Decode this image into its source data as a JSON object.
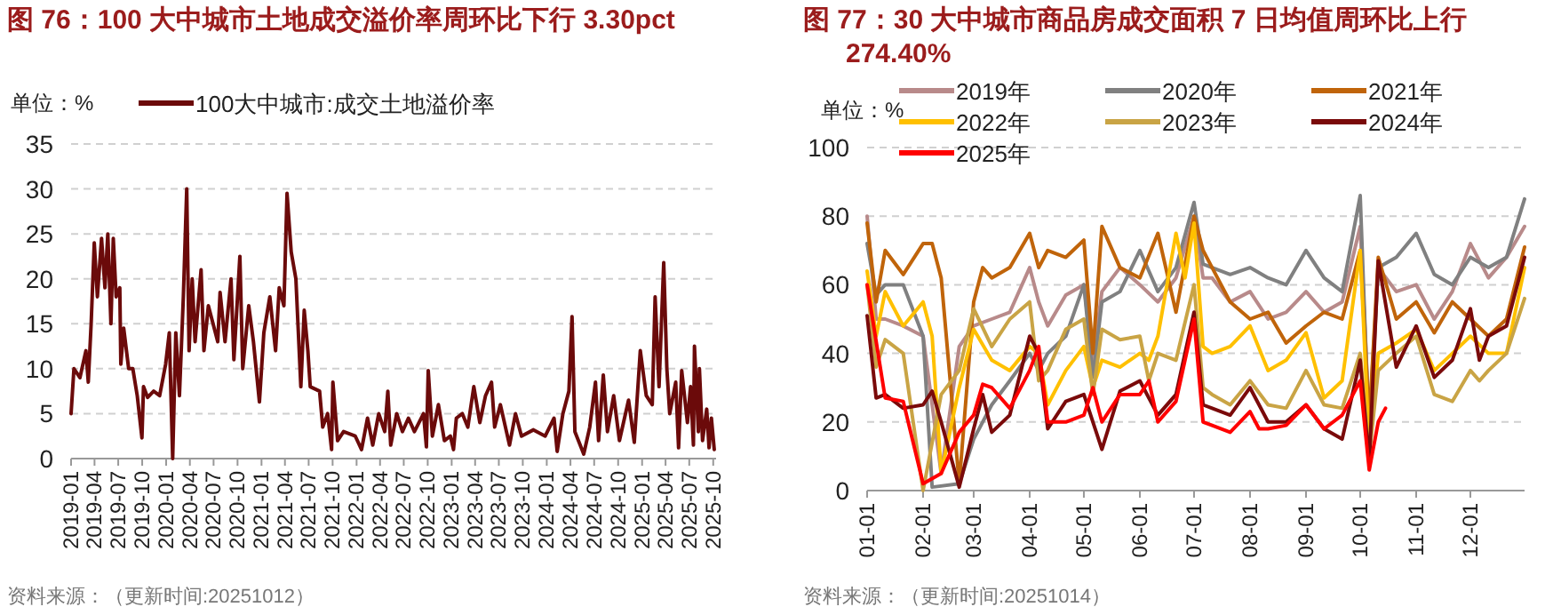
{
  "chart_data": [
    {
      "type": "line",
      "title": "图 76：100 大中城市土地成交溢价率周环比下行 3.30pct",
      "ylabel": "单位：%",
      "annotations": [
        "资料来源：（更新时间:20251012）"
      ],
      "legend": "top",
      "grid": "y",
      "xlim": [
        "2019-01-01",
        "2025-10-12"
      ],
      "ylim": [
        0,
        35
      ],
      "yticks": [
        0,
        5,
        10,
        15,
        20,
        25,
        30,
        35
      ],
      "xticks": [
        "2019-01",
        "2019-04",
        "2019-07",
        "2019-10",
        "2020-01",
        "2020-04",
        "2020-07",
        "2020-10",
        "2021-01",
        "2021-04",
        "2021-07",
        "2021-10",
        "2022-01",
        "2022-04",
        "2022-07",
        "2022-10",
        "2023-01",
        "2023-04",
        "2023-07",
        "2023-10",
        "2024-01",
        "2024-04",
        "2024-07",
        "2024-10",
        "2025-01",
        "2025-04",
        "2025-07",
        "2025-10"
      ],
      "series": [
        {
          "name": "100大中城市:成交土地溢价率",
          "color": "#6b0a0a",
          "x": [
            "2019-01-01",
            "2019-01-12",
            "2019-02-04",
            "2019-02-27",
            "2019-03-08",
            "2019-03-19",
            "2019-03-31",
            "2019-04-12",
            "2019-04-28",
            "2019-05-11",
            "2019-05-22",
            "2019-06-03",
            "2019-06-12",
            "2019-06-23",
            "2019-07-07",
            "2019-07-11",
            "2019-07-22",
            "2019-08-10",
            "2019-08-26",
            "2019-09-12",
            "2019-09-30",
            "2019-10-06",
            "2019-10-22",
            "2019-11-14",
            "2019-12-07",
            "2019-12-30",
            "2020-01-13",
            "2020-01-26",
            "2020-02-07",
            "2020-02-21",
            "2020-03-07",
            "2020-03-20",
            "2020-03-29",
            "2020-04-10",
            "2020-04-21",
            "2020-05-14",
            "2020-05-25",
            "2020-06-11",
            "2020-06-29",
            "2020-07-17",
            "2020-07-26",
            "2020-08-14",
            "2020-09-06",
            "2020-09-17",
            "2020-10-10",
            "2020-10-21",
            "2020-11-13",
            "2020-12-01",
            "2020-12-24",
            "2021-01-10",
            "2021-02-02",
            "2021-02-24",
            "2021-03-10",
            "2021-03-28",
            "2021-04-09",
            "2021-04-25",
            "2021-05-13",
            "2021-06-01",
            "2021-06-14",
            "2021-06-28",
            "2021-07-07",
            "2021-08-12",
            "2021-08-24",
            "2021-09-12",
            "2021-09-27",
            "2021-10-02",
            "2021-10-20",
            "2021-11-12",
            "2021-12-27",
            "2022-01-20",
            "2022-02-12",
            "2022-03-04",
            "2022-03-27",
            "2022-04-19",
            "2022-05-01",
            "2022-05-12",
            "2022-06-04",
            "2022-06-26",
            "2022-07-19",
            "2022-08-11",
            "2022-09-15",
            "2022-09-26",
            "2022-10-03",
            "2022-10-19",
            "2022-11-11",
            "2022-12-04",
            "2022-12-27",
            "2023-01-08",
            "2023-01-19",
            "2023-02-11",
            "2023-03-04",
            "2023-03-27",
            "2023-04-19",
            "2023-05-11",
            "2023-06-03",
            "2023-06-15",
            "2023-07-07",
            "2023-08-11",
            "2023-09-03",
            "2023-09-26",
            "2023-11-11",
            "2023-12-26",
            "2024-01-29",
            "2024-02-10",
            "2024-03-03",
            "2024-03-26",
            "2024-04-07",
            "2024-04-18",
            "2024-05-22",
            "2024-06-14",
            "2024-07-06",
            "2024-07-18",
            "2024-08-05",
            "2024-08-21",
            "2024-09-14",
            "2024-10-06",
            "2024-11-10",
            "2024-12-02",
            "2024-12-25",
            "2025-01-17",
            "2025-02-09",
            "2025-02-20",
            "2025-03-07",
            "2025-03-25",
            "2025-04-06",
            "2025-04-17",
            "2025-05-10",
            "2025-05-21",
            "2025-06-02",
            "2025-06-24",
            "2025-07-06",
            "2025-07-17",
            "2025-07-21",
            "2025-08-05",
            "2025-08-09",
            "2025-08-21",
            "2025-09-06",
            "2025-09-15",
            "2025-09-24",
            "2025-10-05"
          ],
          "values": [
            5,
            10,
            9,
            12,
            8.5,
            15,
            24,
            18,
            24.5,
            19,
            25,
            15,
            24.5,
            18,
            19,
            10.5,
            14.5,
            10,
            10,
            7,
            2.3,
            8,
            6.8,
            7.5,
            7,
            10.5,
            14,
            0,
            14,
            7,
            18,
            30,
            12,
            20,
            13,
            21,
            12,
            17,
            15,
            13,
            18.5,
            13,
            20,
            11,
            22.5,
            10,
            17,
            13,
            6.3,
            14,
            18,
            12,
            19,
            17,
            29.5,
            23,
            20,
            8,
            16.5,
            12,
            8,
            7.5,
            3.5,
            5,
            1,
            8.5,
            2,
            3,
            2.5,
            1,
            4.5,
            1.5,
            5,
            3,
            7.5,
            1.5,
            5,
            3,
            4.5,
            3,
            5,
            1.3,
            9.8,
            2.5,
            6,
            2,
            2.5,
            1,
            4.5,
            5,
            3.5,
            8,
            4,
            7,
            8.5,
            3.5,
            6,
            1.5,
            5,
            2.5,
            3.2,
            2.5,
            4.5,
            0.8,
            5,
            7.5,
            15.8,
            3,
            0.5,
            3.5,
            8.5,
            2,
            9.3,
            3,
            7,
            2,
            6.5,
            1.8,
            12,
            7,
            6,
            18,
            8,
            21.8,
            10,
            5,
            8.5,
            1.2,
            9.8,
            4,
            8,
            1.5,
            12.5,
            3,
            10,
            2,
            5.5,
            1.2,
            4.5,
            1
          ]
        }
      ]
    },
    {
      "type": "line",
      "title": "图 77：30 大中城市商品房成交面积 7 日均值周环比上行 274.40%",
      "ylabel": "单位：%",
      "annotations": [
        "资料来源：（更新时间:20251014）"
      ],
      "legend": "top",
      "grid": "y",
      "xlim": [
        "--01-01",
        "--12-31"
      ],
      "ylim": [
        0,
        100
      ],
      "yticks": [
        0,
        20,
        40,
        60,
        80,
        100
      ],
      "xticks": [
        {
          "value": "--01-01",
          "label": "01-01"
        },
        {
          "value": "--02-01",
          "label": "02-01"
        },
        {
          "value": "--03-01",
          "label": "03-01"
        },
        {
          "value": "--04-01",
          "label": "04-01"
        },
        {
          "value": "--05-01",
          "label": "05-01"
        },
        {
          "value": "--06-01",
          "label": "06-01"
        },
        {
          "value": "--07-01",
          "label": "07-01"
        },
        {
          "value": "--08-01",
          "label": "08-01"
        },
        {
          "value": "--09-01",
          "label": "09-01"
        },
        {
          "value": "--10-01",
          "label": "10-01"
        },
        {
          "value": "--11-01",
          "label": "11-01"
        },
        {
          "value": "--12-01",
          "label": "12-01"
        }
      ],
      "series": [
        {
          "name": "2019年",
          "color": "#b88a8a",
          "x": [
            "--01-01",
            "--01-06",
            "--01-11",
            "--01-21",
            "--02-01",
            "--02-11",
            "--02-21",
            "--03-01",
            "--03-11",
            "--03-21",
            "--04-01",
            "--04-06",
            "--04-11",
            "--04-21",
            "--05-01",
            "--05-06",
            "--05-11",
            "--05-21",
            "--06-01",
            "--06-11",
            "--06-21",
            "--07-01",
            "--07-06",
            "--07-11",
            "--07-21",
            "--08-01",
            "--08-11",
            "--08-21",
            "--09-01",
            "--09-11",
            "--09-21",
            "--10-01",
            "--10-06",
            "--10-11",
            "--10-21",
            "--11-01",
            "--11-11",
            "--11-21",
            "--12-01",
            "--12-11",
            "--12-21",
            "--12-31"
          ],
          "values": [
            80,
            50,
            50,
            48,
            45,
            5,
            42,
            48,
            50,
            52,
            65,
            55,
            48,
            57,
            60,
            38,
            58,
            65,
            60,
            55,
            62,
            80,
            62,
            62,
            55,
            58,
            50,
            52,
            58,
            52,
            55,
            77,
            20,
            65,
            58,
            60,
            50,
            58,
            72,
            62,
            68,
            77
          ]
        },
        {
          "name": "2020年",
          "color": "#808080",
          "x": [
            "--01-01",
            "--01-06",
            "--01-11",
            "--01-21",
            "--02-01",
            "--02-06",
            "--02-21",
            "--03-01",
            "--03-11",
            "--03-21",
            "--04-01",
            "--04-06",
            "--04-11",
            "--04-21",
            "--05-01",
            "--05-06",
            "--05-11",
            "--05-21",
            "--06-01",
            "--06-11",
            "--06-21",
            "--07-01",
            "--07-06",
            "--07-11",
            "--07-21",
            "--08-01",
            "--08-11",
            "--08-21",
            "--09-01",
            "--09-11",
            "--09-21",
            "--10-01",
            "--10-06",
            "--10-11",
            "--10-21",
            "--11-01",
            "--11-11",
            "--11-21",
            "--12-01",
            "--12-11",
            "--12-21",
            "--12-31"
          ],
          "values": [
            72,
            57,
            60,
            60,
            45,
            1,
            2,
            15,
            25,
            32,
            40,
            35,
            40,
            45,
            60,
            33,
            55,
            58,
            70,
            58,
            65,
            84,
            66,
            65,
            63,
            65,
            62,
            60,
            70,
            62,
            58,
            86,
            15,
            65,
            68,
            75,
            63,
            60,
            68,
            65,
            68,
            85
          ]
        },
        {
          "name": "2021年",
          "color": "#c0640a",
          "x": [
            "--01-01",
            "--01-06",
            "--01-11",
            "--01-21",
            "--02-01",
            "--02-06",
            "--02-11",
            "--02-21",
            "--03-01",
            "--03-06",
            "--03-11",
            "--03-21",
            "--04-01",
            "--04-06",
            "--04-11",
            "--04-21",
            "--05-01",
            "--05-06",
            "--05-11",
            "--05-21",
            "--06-01",
            "--06-11",
            "--06-21",
            "--07-01",
            "--07-06",
            "--07-11",
            "--07-21",
            "--08-01",
            "--08-11",
            "--08-21",
            "--09-01",
            "--09-11",
            "--09-21",
            "--10-01",
            "--10-06",
            "--10-11",
            "--10-21",
            "--11-01",
            "--11-11",
            "--11-21",
            "--12-01",
            "--12-11",
            "--12-21",
            "--12-31"
          ],
          "values": [
            78,
            55,
            70,
            63,
            72,
            72,
            62,
            2,
            55,
            65,
            62,
            65,
            75,
            65,
            70,
            68,
            73,
            40,
            77,
            65,
            62,
            75,
            52,
            80,
            70,
            65,
            55,
            50,
            52,
            43,
            48,
            52,
            50,
            70,
            20,
            68,
            50,
            55,
            46,
            55,
            50,
            45,
            50,
            71
          ]
        },
        {
          "name": "2022年",
          "color": "#ffc000",
          "x": [
            "--01-01",
            "--01-06",
            "--01-11",
            "--01-21",
            "--02-01",
            "--02-06",
            "--02-11",
            "--02-21",
            "--03-01",
            "--03-11",
            "--03-21",
            "--04-01",
            "--04-06",
            "--04-11",
            "--04-21",
            "--05-01",
            "--05-06",
            "--05-11",
            "--05-21",
            "--06-01",
            "--06-06",
            "--06-11",
            "--06-21",
            "--06-26",
            "--07-01",
            "--07-06",
            "--07-11",
            "--07-21",
            "--08-01",
            "--08-11",
            "--08-21",
            "--09-01",
            "--09-11",
            "--09-21",
            "--10-01",
            "--10-06",
            "--10-11",
            "--10-21",
            "--11-01",
            "--11-11",
            "--11-21",
            "--12-01",
            "--12-11",
            "--12-21",
            "--12-31"
          ],
          "values": [
            64,
            45,
            58,
            48,
            55,
            45,
            5,
            30,
            47,
            38,
            35,
            42,
            40,
            25,
            35,
            42,
            30,
            38,
            36,
            40,
            38,
            45,
            75,
            62,
            78,
            42,
            40,
            42,
            48,
            35,
            38,
            46,
            27,
            32,
            70,
            12,
            40,
            43,
            47,
            35,
            40,
            45,
            40,
            40,
            65
          ]
        },
        {
          "name": "2023年",
          "color": "#c9a445",
          "x": [
            "--01-01",
            "--01-06",
            "--01-11",
            "--01-21",
            "--02-01",
            "--02-11",
            "--02-21",
            "--03-01",
            "--03-11",
            "--03-21",
            "--04-01",
            "--04-06",
            "--04-11",
            "--04-21",
            "--05-01",
            "--05-06",
            "--05-11",
            "--05-21",
            "--06-01",
            "--06-06",
            "--06-11",
            "--06-21",
            "--07-01",
            "--07-06",
            "--07-11",
            "--07-21",
            "--08-01",
            "--08-11",
            "--08-21",
            "--09-01",
            "--09-11",
            "--09-21",
            "--10-01",
            "--10-06",
            "--10-11",
            "--10-21",
            "--11-01",
            "--11-11",
            "--11-21",
            "--12-01",
            "--12-06",
            "--12-11",
            "--12-21",
            "--12-31"
          ],
          "values": [
            60,
            36,
            44,
            40,
            0,
            28,
            35,
            53,
            42,
            50,
            55,
            32,
            35,
            47,
            50,
            28,
            47,
            44,
            45,
            32,
            40,
            38,
            60,
            30,
            28,
            25,
            32,
            25,
            24,
            35,
            25,
            24,
            40,
            10,
            35,
            40,
            45,
            28,
            26,
            35,
            32,
            35,
            40,
            56
          ]
        },
        {
          "name": "2024年",
          "color": "#7a0a0a",
          "x": [
            "--01-01",
            "--01-06",
            "--01-11",
            "--01-21",
            "--02-01",
            "--02-06",
            "--02-11",
            "--02-21",
            "--03-01",
            "--03-06",
            "--03-11",
            "--03-21",
            "--04-01",
            "--04-06",
            "--04-11",
            "--04-21",
            "--05-01",
            "--05-11",
            "--05-21",
            "--06-01",
            "--06-11",
            "--06-21",
            "--07-01",
            "--07-06",
            "--07-11",
            "--07-21",
            "--08-01",
            "--08-11",
            "--08-21",
            "--09-01",
            "--09-11",
            "--09-21",
            "--10-01",
            "--10-06",
            "--10-11",
            "--10-21",
            "--11-01",
            "--11-11",
            "--11-21",
            "--12-01",
            "--12-06",
            "--12-11",
            "--12-21",
            "--12-31"
          ],
          "values": [
            51,
            27,
            28,
            24,
            25,
            29,
            20,
            1,
            18,
            28,
            17,
            22,
            45,
            40,
            18,
            26,
            28,
            12,
            29,
            32,
            22,
            28,
            52,
            25,
            24,
            22,
            30,
            20,
            20,
            25,
            18,
            15,
            38,
            8,
            67,
            36,
            48,
            33,
            38,
            53,
            38,
            45,
            48,
            68
          ]
        },
        {
          "name": "2025年",
          "color": "#ff0000",
          "x": [
            "--01-01",
            "--01-11",
            "--01-21",
            "--02-01",
            "--02-11",
            "--02-21",
            "--03-01",
            "--03-06",
            "--03-11",
            "--03-21",
            "--04-01",
            "--04-06",
            "--04-11",
            "--04-21",
            "--05-01",
            "--05-06",
            "--05-11",
            "--05-21",
            "--06-01",
            "--06-06",
            "--06-11",
            "--06-21",
            "--07-01",
            "--07-06",
            "--07-11",
            "--07-21",
            "--08-01",
            "--08-06",
            "--08-11",
            "--08-21",
            "--09-01",
            "--09-11",
            "--09-21",
            "--10-01",
            "--10-06",
            "--10-11",
            "--10-15"
          ],
          "values": [
            60,
            27,
            26,
            2,
            5,
            17,
            22,
            31,
            30,
            24,
            35,
            42,
            20,
            20,
            22,
            30,
            20,
            28,
            28,
            32,
            20,
            26,
            50,
            20,
            19,
            17,
            23,
            18,
            18,
            19,
            25,
            18,
            22,
            32,
            6,
            20,
            24
          ]
        }
      ]
    }
  ]
}
